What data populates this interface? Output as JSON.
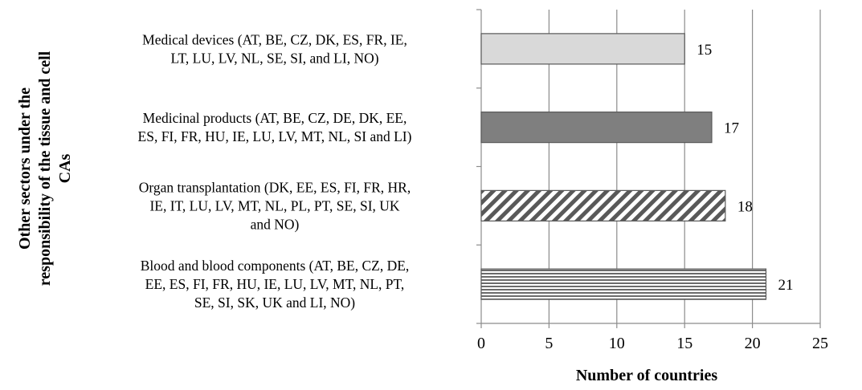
{
  "chart_data": {
    "type": "bar",
    "orientation": "horizontal",
    "categories": [
      {
        "label_lines": [
          "Medical devices (AT, BE, CZ, DK, ES, FR, IE,",
          "LT, LU, LV, NL, SE, SI, and LI, NO)"
        ],
        "value": 15,
        "fill": "solid-light",
        "color": "#d9d9d9"
      },
      {
        "label_lines": [
          "Medicinal products  (AT, BE, CZ, DE, DK, EE,",
          "ES, FI, FR, HU, IE, LU, LV, MT, NL, SI and LI)"
        ],
        "value": 17,
        "fill": "solid-dark",
        "color": "#7f7f7f"
      },
      {
        "label_lines": [
          "Organ transplantation (DK, EE, ES, FI, FR, HR,",
          "IE, IT, LU, LV, MT, NL, PL, PT, SE, SI, UK",
          "and NO)"
        ],
        "value": 18,
        "fill": "diagonal-stripes",
        "color": "#595959"
      },
      {
        "label_lines": [
          "Blood and blood components (AT, BE, CZ, DE,",
          "EE, ES, FI, FR, HU, IE, LU, LV, MT, NL, PT,",
          "SE, SI, SK, UK and LI, NO)"
        ],
        "value": 21,
        "fill": "horizontal-stripes",
        "color": "#595959"
      }
    ],
    "xlabel": "Number of countries",
    "ylabel_lines": [
      "Other sectors under the",
      "responsibility of the tissue and cell",
      "CAs"
    ],
    "xlim": [
      0,
      25
    ],
    "xticks": [
      "0",
      "5",
      "10",
      "15",
      "20",
      "25"
    ],
    "grid": "vertical",
    "legend": "none"
  }
}
